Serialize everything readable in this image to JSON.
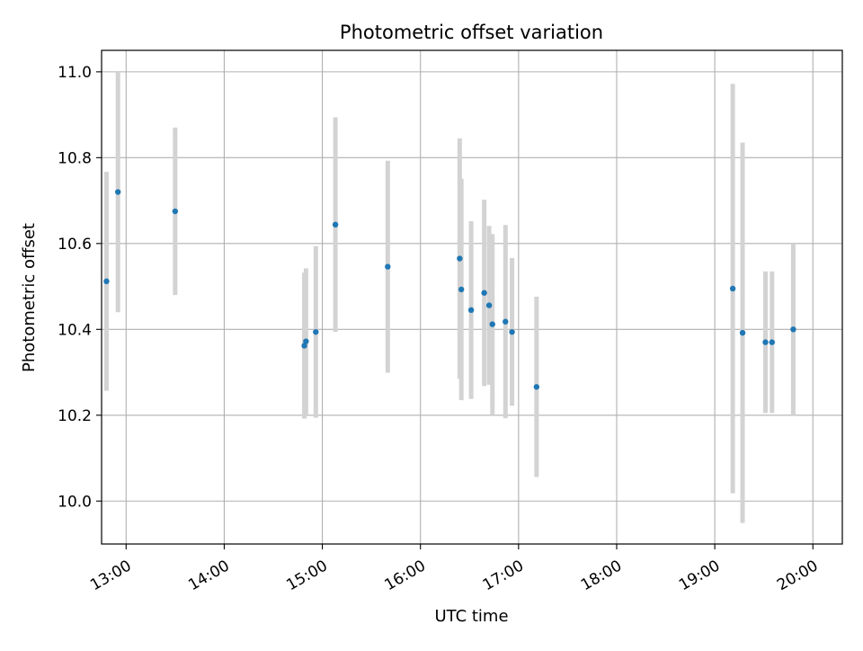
{
  "chart_data": {
    "type": "scatter",
    "title": "Photometric offset variation",
    "xlabel": "UTC time",
    "ylabel": "Photometric offset",
    "x_unit": "UTC time (HH:MM)",
    "xlim": [
      "12:45",
      "20:18"
    ],
    "ylim": [
      9.9,
      11.05
    ],
    "xticks": [
      "13:00",
      "14:00",
      "15:00",
      "16:00",
      "17:00",
      "18:00",
      "19:00",
      "20:00"
    ],
    "yticks": [
      10.0,
      10.2,
      10.4,
      10.6,
      10.8,
      11.0
    ],
    "ytick_labels": [
      "10.0",
      "10.2",
      "10.4",
      "10.6",
      "10.8",
      "11.0"
    ],
    "grid": true,
    "colors": {
      "point": "#1f77b4",
      "errorbar": "#d3d3d3",
      "grid": "#b0b0b0",
      "axes": "#000000"
    },
    "points": [
      {
        "x": "12:48",
        "y": 10.512,
        "err": 0.255
      },
      {
        "x": "12:55",
        "y": 10.72,
        "err": 0.28
      },
      {
        "x": "13:30",
        "y": 10.675,
        "err": 0.195
      },
      {
        "x": "14:49",
        "y": 10.362,
        "err": 0.17
      },
      {
        "x": "14:50",
        "y": 10.372,
        "err": 0.17
      },
      {
        "x": "14:56",
        "y": 10.394,
        "err": 0.2
      },
      {
        "x": "15:08",
        "y": 10.644,
        "err": 0.25
      },
      {
        "x": "15:40",
        "y": 10.546,
        "err": 0.247
      },
      {
        "x": "16:24",
        "y": 10.565,
        "err": 0.28
      },
      {
        "x": "16:25",
        "y": 10.493,
        "err": 0.258
      },
      {
        "x": "16:31",
        "y": 10.445,
        "err": 0.207
      },
      {
        "x": "16:39",
        "y": 10.485,
        "err": 0.217
      },
      {
        "x": "16:42",
        "y": 10.456,
        "err": 0.185
      },
      {
        "x": "16:44",
        "y": 10.412,
        "err": 0.21
      },
      {
        "x": "16:52",
        "y": 10.418,
        "err": 0.225
      },
      {
        "x": "16:56",
        "y": 10.394,
        "err": 0.172
      },
      {
        "x": "17:11",
        "y": 10.266,
        "err": 0.21
      },
      {
        "x": "19:11",
        "y": 10.495,
        "err": 0.477
      },
      {
        "x": "19:17",
        "y": 10.392,
        "err": 0.443
      },
      {
        "x": "19:31",
        "y": 10.37,
        "err": 0.165
      },
      {
        "x": "19:35",
        "y": 10.37,
        "err": 0.165
      },
      {
        "x": "19:48",
        "y": 10.4,
        "err": 0.2
      }
    ]
  }
}
